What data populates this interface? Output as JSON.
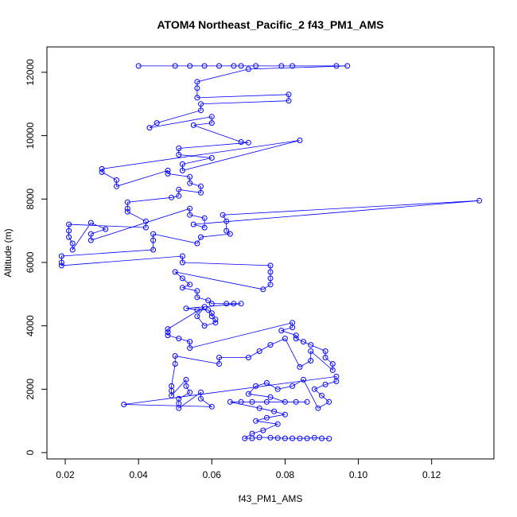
{
  "chart_data": {
    "type": "scatter",
    "title": "ATOM4 Northeast_Pacific_2 f43_PM1_AMS",
    "xlabel": "f43_PM1_AMS",
    "ylabel": "Altitude (m)",
    "xlim": [
      0.015,
      0.137
    ],
    "ylim": [
      -200,
      12800
    ],
    "xticks": [
      0.02,
      0.04,
      0.06,
      0.08,
      0.1,
      0.12
    ],
    "xtick_labels": [
      "0.02",
      "0.04",
      "0.06",
      "0.08",
      "0.10",
      "0.12"
    ],
    "yticks": [
      0,
      2000,
      4000,
      6000,
      8000,
      10000,
      12000
    ],
    "ytick_labels": [
      "0",
      "2000",
      "4000",
      "6000",
      "8000",
      "10000",
      "12000"
    ],
    "grid": false,
    "legend": "none",
    "series_color": "#0000ff",
    "marker": "open-circle",
    "connected": true,
    "points": [
      {
        "x": 0.04,
        "y": 12200
      },
      {
        "x": 0.062,
        "y": 12200
      },
      {
        "x": 0.05,
        "y": 12200
      },
      {
        "x": 0.054,
        "y": 12200
      },
      {
        "x": 0.058,
        "y": 12200
      },
      {
        "x": 0.066,
        "y": 12200
      },
      {
        "x": 0.068,
        "y": 12200
      },
      {
        "x": 0.072,
        "y": 12200
      },
      {
        "x": 0.079,
        "y": 12200
      },
      {
        "x": 0.082,
        "y": 12200
      },
      {
        "x": 0.094,
        "y": 12200
      },
      {
        "x": 0.097,
        "y": 12200
      },
      {
        "x": 0.07,
        "y": 12100
      },
      {
        "x": 0.056,
        "y": 11700
      },
      {
        "x": 0.056,
        "y": 11500
      },
      {
        "x": 0.056,
        "y": 11200
      },
      {
        "x": 0.081,
        "y": 11300
      },
      {
        "x": 0.081,
        "y": 11100
      },
      {
        "x": 0.057,
        "y": 11000
      },
      {
        "x": 0.057,
        "y": 10800
      },
      {
        "x": 0.045,
        "y": 10400
      },
      {
        "x": 0.043,
        "y": 10250
      },
      {
        "x": 0.06,
        "y": 10600
      },
      {
        "x": 0.06,
        "y": 10400
      },
      {
        "x": 0.055,
        "y": 10330
      },
      {
        "x": 0.068,
        "y": 9800
      },
      {
        "x": 0.07,
        "y": 9780
      },
      {
        "x": 0.051,
        "y": 9600
      },
      {
        "x": 0.051,
        "y": 9400
      },
      {
        "x": 0.06,
        "y": 9300
      },
      {
        "x": 0.052,
        "y": 9100
      },
      {
        "x": 0.052,
        "y": 8900
      },
      {
        "x": 0.084,
        "y": 9850
      },
      {
        "x": 0.03,
        "y": 8950
      },
      {
        "x": 0.03,
        "y": 8850
      },
      {
        "x": 0.034,
        "y": 8600
      },
      {
        "x": 0.034,
        "y": 8400
      },
      {
        "x": 0.048,
        "y": 8900
      },
      {
        "x": 0.048,
        "y": 8800
      },
      {
        "x": 0.054,
        "y": 8700
      },
      {
        "x": 0.054,
        "y": 8500
      },
      {
        "x": 0.057,
        "y": 8400
      },
      {
        "x": 0.057,
        "y": 8200
      },
      {
        "x": 0.051,
        "y": 8300
      },
      {
        "x": 0.051,
        "y": 8100
      },
      {
        "x": 0.049,
        "y": 8050
      },
      {
        "x": 0.037,
        "y": 7900
      },
      {
        "x": 0.037,
        "y": 7700
      },
      {
        "x": 0.037,
        "y": 7600
      },
      {
        "x": 0.042,
        "y": 7300
      },
      {
        "x": 0.042,
        "y": 7100
      },
      {
        "x": 0.021,
        "y": 7200
      },
      {
        "x": 0.021,
        "y": 7000
      },
      {
        "x": 0.021,
        "y": 6800
      },
      {
        "x": 0.022,
        "y": 6600
      },
      {
        "x": 0.022,
        "y": 6400
      },
      {
        "x": 0.027,
        "y": 7250
      },
      {
        "x": 0.031,
        "y": 7050
      },
      {
        "x": 0.027,
        "y": 6900
      },
      {
        "x": 0.027,
        "y": 6700
      },
      {
        "x": 0.054,
        "y": 7700
      },
      {
        "x": 0.054,
        "y": 7500
      },
      {
        "x": 0.058,
        "y": 7400
      },
      {
        "x": 0.058,
        "y": 7100
      },
      {
        "x": 0.055,
        "y": 7200
      },
      {
        "x": 0.133,
        "y": 7950
      },
      {
        "x": 0.063,
        "y": 7500
      },
      {
        "x": 0.064,
        "y": 7300
      },
      {
        "x": 0.064,
        "y": 7000
      },
      {
        "x": 0.065,
        "y": 6900
      },
      {
        "x": 0.057,
        "y": 6800
      },
      {
        "x": 0.056,
        "y": 6600
      },
      {
        "x": 0.044,
        "y": 6900
      },
      {
        "x": 0.044,
        "y": 6700
      },
      {
        "x": 0.044,
        "y": 6400
      },
      {
        "x": 0.019,
        "y": 6200
      },
      {
        "x": 0.019,
        "y": 6000
      },
      {
        "x": 0.019,
        "y": 5900
      },
      {
        "x": 0.052,
        "y": 6200
      },
      {
        "x": 0.052,
        "y": 6000
      },
      {
        "x": 0.076,
        "y": 5900
      },
      {
        "x": 0.076,
        "y": 5700
      },
      {
        "x": 0.076,
        "y": 5500
      },
      {
        "x": 0.076,
        "y": 5300
      },
      {
        "x": 0.074,
        "y": 5150
      },
      {
        "x": 0.05,
        "y": 5700
      },
      {
        "x": 0.052,
        "y": 5500
      },
      {
        "x": 0.054,
        "y": 5300
      },
      {
        "x": 0.052,
        "y": 5200
      },
      {
        "x": 0.056,
        "y": 5100
      },
      {
        "x": 0.056,
        "y": 4900
      },
      {
        "x": 0.059,
        "y": 4800
      },
      {
        "x": 0.06,
        "y": 4700
      },
      {
        "x": 0.064,
        "y": 4700
      },
      {
        "x": 0.066,
        "y": 4700
      },
      {
        "x": 0.068,
        "y": 4700
      },
      {
        "x": 0.053,
        "y": 4550
      },
      {
        "x": 0.056,
        "y": 4500
      },
      {
        "x": 0.059,
        "y": 4500
      },
      {
        "x": 0.06,
        "y": 4400
      },
      {
        "x": 0.06,
        "y": 4300
      },
      {
        "x": 0.061,
        "y": 4200
      },
      {
        "x": 0.061,
        "y": 4100
      },
      {
        "x": 0.058,
        "y": 4000
      },
      {
        "x": 0.056,
        "y": 4300
      },
      {
        "x": 0.058,
        "y": 4600
      },
      {
        "x": 0.048,
        "y": 3900
      },
      {
        "x": 0.048,
        "y": 3800
      },
      {
        "x": 0.048,
        "y": 3700
      },
      {
        "x": 0.051,
        "y": 3600
      },
      {
        "x": 0.054,
        "y": 3500
      },
      {
        "x": 0.054,
        "y": 3300
      },
      {
        "x": 0.082,
        "y": 4100
      },
      {
        "x": 0.082,
        "y": 3950
      },
      {
        "x": 0.079,
        "y": 3850
      },
      {
        "x": 0.083,
        "y": 3700
      },
      {
        "x": 0.083,
        "y": 3600
      },
      {
        "x": 0.085,
        "y": 3500
      },
      {
        "x": 0.087,
        "y": 3400
      },
      {
        "x": 0.091,
        "y": 3200
      },
      {
        "x": 0.091,
        "y": 3000
      },
      {
        "x": 0.093,
        "y": 2800
      },
      {
        "x": 0.093,
        "y": 2600
      },
      {
        "x": 0.087,
        "y": 3200
      },
      {
        "x": 0.087,
        "y": 2900
      },
      {
        "x": 0.084,
        "y": 2700
      },
      {
        "x": 0.08,
        "y": 3600
      },
      {
        "x": 0.076,
        "y": 3400
      },
      {
        "x": 0.073,
        "y": 3200
      },
      {
        "x": 0.07,
        "y": 3000
      },
      {
        "x": 0.062,
        "y": 3000
      },
      {
        "x": 0.062,
        "y": 2800
      },
      {
        "x": 0.05,
        "y": 3050
      },
      {
        "x": 0.05,
        "y": 2800
      },
      {
        "x": 0.049,
        "y": 2100
      },
      {
        "x": 0.049,
        "y": 1950
      },
      {
        "x": 0.049,
        "y": 1800
      },
      {
        "x": 0.053,
        "y": 2300
      },
      {
        "x": 0.053,
        "y": 2100
      },
      {
        "x": 0.054,
        "y": 1900
      },
      {
        "x": 0.051,
        "y": 1700
      },
      {
        "x": 0.051,
        "y": 1550
      },
      {
        "x": 0.051,
        "y": 1400
      },
      {
        "x": 0.057,
        "y": 1900
      },
      {
        "x": 0.057,
        "y": 1700
      },
      {
        "x": 0.06,
        "y": 1450
      },
      {
        "x": 0.036,
        "y": 1520
      },
      {
        "x": 0.094,
        "y": 2400
      },
      {
        "x": 0.094,
        "y": 2250
      },
      {
        "x": 0.091,
        "y": 2150
      },
      {
        "x": 0.088,
        "y": 2000
      },
      {
        "x": 0.09,
        "y": 1800
      },
      {
        "x": 0.092,
        "y": 1600
      },
      {
        "x": 0.089,
        "y": 1400
      },
      {
        "x": 0.085,
        "y": 2300
      },
      {
        "x": 0.082,
        "y": 2100
      },
      {
        "x": 0.078,
        "y": 2000
      },
      {
        "x": 0.075,
        "y": 2200
      },
      {
        "x": 0.072,
        "y": 2100
      },
      {
        "x": 0.07,
        "y": 1850
      },
      {
        "x": 0.076,
        "y": 1750
      },
      {
        "x": 0.08,
        "y": 1600
      },
      {
        "x": 0.083,
        "y": 1600
      },
      {
        "x": 0.086,
        "y": 1600
      },
      {
        "x": 0.075,
        "y": 1600
      },
      {
        "x": 0.071,
        "y": 1600
      },
      {
        "x": 0.068,
        "y": 1600
      },
      {
        "x": 0.065,
        "y": 1600
      },
      {
        "x": 0.073,
        "y": 1400
      },
      {
        "x": 0.077,
        "y": 1300
      },
      {
        "x": 0.08,
        "y": 1200
      },
      {
        "x": 0.075,
        "y": 1100
      },
      {
        "x": 0.072,
        "y": 1000
      },
      {
        "x": 0.078,
        "y": 900
      },
      {
        "x": 0.074,
        "y": 700
      },
      {
        "x": 0.071,
        "y": 600
      },
      {
        "x": 0.069,
        "y": 450
      },
      {
        "x": 0.071,
        "y": 450
      },
      {
        "x": 0.073,
        "y": 480
      },
      {
        "x": 0.076,
        "y": 470
      },
      {
        "x": 0.078,
        "y": 460
      },
      {
        "x": 0.08,
        "y": 450
      },
      {
        "x": 0.082,
        "y": 450
      },
      {
        "x": 0.084,
        "y": 450
      },
      {
        "x": 0.086,
        "y": 450
      },
      {
        "x": 0.088,
        "y": 470
      },
      {
        "x": 0.09,
        "y": 450
      },
      {
        "x": 0.092,
        "y": 440
      }
    ]
  }
}
